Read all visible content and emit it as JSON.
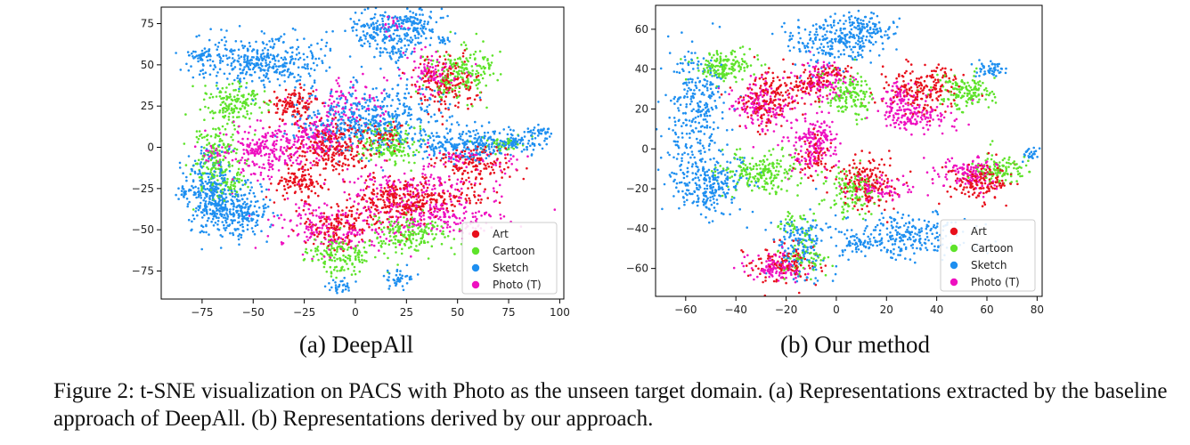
{
  "figure": {
    "caption": "Figure 2: t-SNE visualization on PACS with Photo as the unseen target domain. (a) Representations extracted by the baseline approach of DeepAll. (b) Representations derived by our approach."
  },
  "colors": {
    "Art": "#e8101c",
    "Cartoon": "#5ee32a",
    "Sketch": "#1e8ff0",
    "Photo (T)": "#ee10c0"
  },
  "chart_data": [
    {
      "type": "scatter",
      "subcaption": "(a) DeepAll",
      "title": "",
      "xlabel": "",
      "ylabel": "",
      "xlim": [
        -95,
        102
      ],
      "ylim": [
        -92,
        85
      ],
      "xticks": [
        -75,
        -50,
        -25,
        0,
        25,
        50,
        75,
        100
      ],
      "yticks": [
        -75,
        -50,
        -25,
        0,
        25,
        50,
        75
      ],
      "legend": {
        "position": "lower-right",
        "entries": [
          "Art",
          "Cartoon",
          "Sketch",
          "Photo (T)"
        ]
      },
      "series": [
        {
          "name": "Art",
          "clusters": [
            [
              -30,
              26,
              6,
              5,
              120
            ],
            [
              -28,
              -22,
              6,
              4,
              110
            ],
            [
              -10,
              0,
              10,
              8,
              260
            ],
            [
              22,
              -32,
              12,
              7,
              270
            ],
            [
              -8,
              -48,
              7,
              6,
              140
            ],
            [
              45,
              38,
              8,
              8,
              170
            ],
            [
              58,
              -10,
              10,
              6,
              140
            ],
            [
              14,
              8,
              5,
              5,
              50
            ],
            [
              48,
              -30,
              12,
              3,
              60
            ]
          ]
        },
        {
          "name": "Cartoon",
          "clusters": [
            [
              -58,
              27,
              8,
              6,
              150
            ],
            [
              -68,
              -8,
              6,
              11,
              190
            ],
            [
              16,
              2,
              8,
              6,
              160
            ],
            [
              26,
              -52,
              9,
              6,
              180
            ],
            [
              -8,
              -66,
              8,
              5,
              150
            ],
            [
              52,
              45,
              8,
              8,
              190
            ],
            [
              72,
              2,
              6,
              3,
              40
            ],
            [
              -60,
              -22,
              3,
              3,
              30
            ]
          ]
        },
        {
          "name": "Sketch",
          "clusters": [
            [
              -44,
              52,
              16,
              8,
              380
            ],
            [
              6,
              17,
              18,
              9,
              450
            ],
            [
              12,
              71,
              9,
              6,
              160
            ],
            [
              30,
              74,
              6,
              6,
              120
            ],
            [
              -70,
              -27,
              6,
              11,
              280
            ],
            [
              -58,
              -40,
              8,
              8,
              240
            ],
            [
              55,
              2,
              13,
              5,
              240
            ],
            [
              80,
              3,
              6,
              3,
              70
            ],
            [
              -78,
              56,
              4,
              2,
              35
            ],
            [
              -83,
              -27,
              3,
              2,
              25
            ],
            [
              90,
              9,
              3,
              2,
              30
            ],
            [
              -8,
              -84,
              3,
              2,
              30
            ],
            [
              21,
              -80,
              4,
              3,
              40
            ],
            [
              43,
              65,
              2,
              2,
              15
            ],
            [
              20,
              56,
              5,
              3,
              40
            ]
          ]
        },
        {
          "name": "Photo (T)",
          "clusters": [
            [
              -40,
              -2,
              14,
              8,
              200
            ],
            [
              -20,
              7,
              7,
              6,
              120
            ],
            [
              -10,
              -48,
              16,
              8,
              200
            ],
            [
              42,
              -42,
              16,
              6,
              200
            ],
            [
              28,
              -24,
              18,
              5,
              130
            ],
            [
              36,
              46,
              8,
              6,
              90
            ],
            [
              -5,
              28,
              10,
              8,
              90
            ],
            [
              -48,
              0,
              5,
              5,
              60
            ],
            [
              58,
              -8,
              16,
              4,
              60
            ],
            [
              -70,
              -5,
              3,
              3,
              20
            ],
            [
              18,
              75,
              3,
              3,
              20
            ]
          ]
        }
      ]
    },
    {
      "type": "scatter",
      "subcaption": "(b) Our method",
      "title": "",
      "xlabel": "",
      "ylabel": "",
      "xlim": [
        -72,
        82
      ],
      "ylim": [
        -74,
        72
      ],
      "xticks": [
        -60,
        -40,
        -20,
        0,
        20,
        40,
        60,
        80
      ],
      "yticks": [
        -60,
        -40,
        -20,
        0,
        20,
        40,
        60
      ],
      "legend": {
        "position": "lower-right",
        "entries": [
          "Art",
          "Cartoon",
          "Sketch",
          "Photo (T)"
        ]
      },
      "series": [
        {
          "name": "Art",
          "clusters": [
            [
              -28,
              26,
              6,
              7,
              170
            ],
            [
              -12,
              33,
              5,
              4,
              80
            ],
            [
              -8,
              -4,
              3,
              5,
              60
            ],
            [
              35,
              30,
              8,
              6,
              190
            ],
            [
              12,
              -17,
              6,
              7,
              160
            ],
            [
              58,
              -17,
              7,
              5,
              160
            ],
            [
              -20,
              -57,
              7,
              5,
              120
            ],
            [
              0,
              38,
              3,
              2,
              30
            ]
          ]
        },
        {
          "name": "Cartoon",
          "clusters": [
            [
              -45,
              41,
              6,
              4,
              160
            ],
            [
              -30,
              -12,
              8,
              5,
              200
            ],
            [
              5,
              27,
              5,
              5,
              140
            ],
            [
              52,
              29,
              6,
              4,
              150
            ],
            [
              6,
              -22,
              5,
              6,
              120
            ],
            [
              65,
              -10,
              5,
              4,
              110
            ],
            [
              -12,
              -53,
              5,
              5,
              70
            ],
            [
              -16,
              -38,
              4,
              3,
              40
            ]
          ]
        },
        {
          "name": "Sketch",
          "clusters": [
            [
              -56,
              22,
              6,
              15,
              280
            ],
            [
              -51,
              -18,
              8,
              7,
              260
            ],
            [
              0,
              54,
              10,
              6,
              240
            ],
            [
              12,
              61,
              5,
              4,
              90
            ],
            [
              62,
              40,
              3,
              2,
              50
            ],
            [
              28,
              -43,
              12,
              6,
              240
            ],
            [
              -14,
              -49,
              6,
              8,
              160
            ],
            [
              77,
              -2,
              2,
              2,
              25
            ],
            [
              8,
              -48,
              4,
              3,
              40
            ]
          ]
        },
        {
          "name": "Photo (T)",
          "clusters": [
            [
              -30,
              22,
              6,
              6,
              150
            ],
            [
              -10,
              2,
              5,
              7,
              150
            ],
            [
              -5,
              33,
              5,
              6,
              110
            ],
            [
              32,
              15,
              7,
              4,
              130
            ],
            [
              25,
              25,
              4,
              4,
              70
            ],
            [
              52,
              -12,
              6,
              4,
              120
            ],
            [
              -24,
              -60,
              6,
              4,
              110
            ],
            [
              18,
              -20,
              6,
              3,
              70
            ],
            [
              -6,
              8,
              3,
              3,
              30
            ]
          ]
        }
      ]
    }
  ]
}
